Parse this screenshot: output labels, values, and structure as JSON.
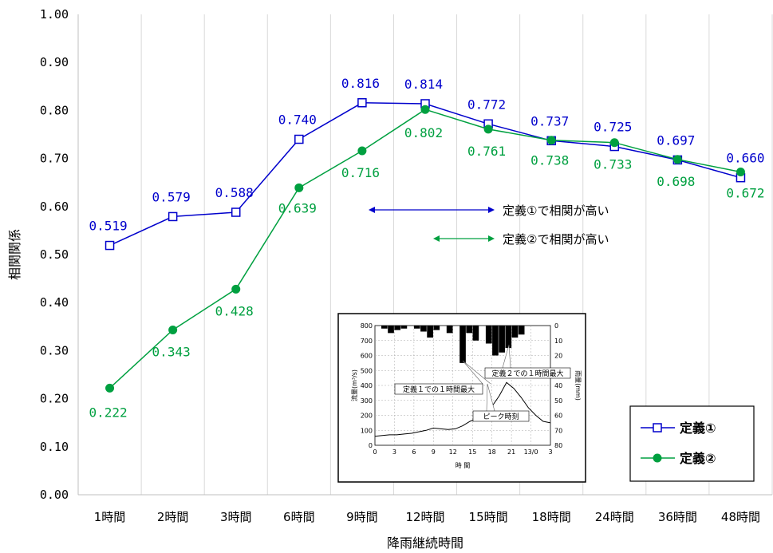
{
  "chart_data": {
    "type": "line",
    "xlabel": "降雨継続時間",
    "ylabel": "相関関係",
    "categories": [
      "1時間",
      "2時間",
      "3時間",
      "6時間",
      "9時間",
      "12時間",
      "15時間",
      "18時間",
      "24時間",
      "36時間",
      "48時間"
    ],
    "ylim": [
      0,
      1
    ],
    "yticks": [
      "0.00",
      "0.10",
      "0.20",
      "0.30",
      "0.40",
      "0.50",
      "0.60",
      "0.70",
      "0.80",
      "0.90",
      "1.00"
    ],
    "grid": "vertical",
    "series": [
      {
        "name": "定義①",
        "color": "#0000cc",
        "marker": "open-square",
        "values": [
          0.519,
          0.579,
          0.588,
          0.74,
          0.816,
          0.814,
          0.772,
          0.737,
          0.725,
          0.697,
          0.66
        ],
        "labels": [
          "0.519",
          "0.579",
          "0.588",
          "0.740",
          "0.816",
          "0.814",
          "0.772",
          "0.737",
          "0.725",
          "0.697",
          "0.660"
        ]
      },
      {
        "name": "定義②",
        "color": "#00a040",
        "marker": "filled-circle",
        "values": [
          0.222,
          0.343,
          0.428,
          0.639,
          0.716,
          0.802,
          0.761,
          0.738,
          0.733,
          0.698,
          0.672
        ],
        "labels": [
          "0.222",
          "0.343",
          "0.428",
          "0.639",
          "0.716",
          "0.802",
          "0.761",
          "0.738",
          "0.733",
          "0.698",
          "0.672"
        ]
      }
    ],
    "annotations": [
      {
        "text": "定義①で相関が高い",
        "color": "#0000cc"
      },
      {
        "text": "定義②で相関が高い",
        "color": "#00a040"
      }
    ],
    "legend": {
      "placement": "bottom-right",
      "items": [
        "定義①",
        "定義②"
      ]
    },
    "inset": {
      "left_axis_label": "流量(m³/s)",
      "right_axis_label": "雨量(mm)",
      "x_label": "時 間",
      "left_ticks": [
        "800",
        "700",
        "600",
        "500",
        "400",
        "300",
        "200",
        "100",
        "0"
      ],
      "right_ticks": [
        "0",
        "10",
        "20",
        "30",
        "40",
        "50",
        "60",
        "70",
        "80"
      ],
      "x_ticks": [
        "0",
        "3",
        "6",
        "9",
        "12",
        "15",
        "18",
        "21",
        "13/0",
        "3"
      ],
      "callouts": [
        "定義１での１時間最大",
        "定義２での１時間最大",
        "ピーク時刻"
      ],
      "hyeto": [
        2,
        5,
        3,
        2,
        0,
        2,
        4,
        8,
        3,
        0,
        5,
        0,
        25,
        5,
        10,
        0,
        12,
        20,
        18,
        15,
        8,
        6
      ],
      "flow": [
        60,
        65,
        70,
        70,
        75,
        80,
        90,
        100,
        115,
        110,
        105,
        110,
        130,
        160,
        180,
        200,
        260,
        330,
        420,
        380,
        320,
        250,
        200,
        160,
        150
      ]
    }
  }
}
